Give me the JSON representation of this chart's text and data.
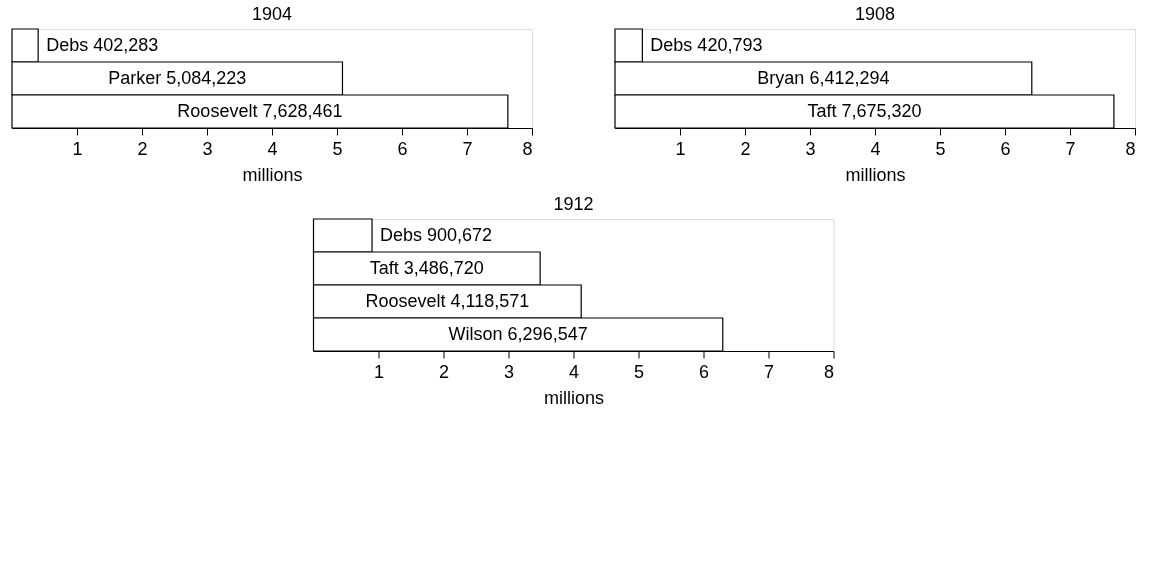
{
  "chart_data": [
    {
      "type": "bar",
      "orientation": "horizontal",
      "title": "1904",
      "xlabel": "millions",
      "categories": [
        "Debs 402,283",
        "Parker 5,084,223",
        "Roosevelt 7,628,461"
      ],
      "values": [
        0.402283,
        5.084223,
        7.628461
      ],
      "color": "#ffffff",
      "xlim": [
        0,
        8
      ],
      "xticks": [
        1,
        2,
        3,
        4,
        5,
        6,
        7,
        8
      ],
      "grid": false
    },
    {
      "type": "bar",
      "orientation": "horizontal",
      "title": "1908",
      "xlabel": "millions",
      "categories": [
        "Debs 420,793",
        "Bryan 6,412,294",
        "Taft 7,675,320"
      ],
      "values": [
        0.420793,
        6.412294,
        7.67532
      ],
      "color": "#ffffff",
      "xlim": [
        0,
        8
      ],
      "xticks": [
        1,
        2,
        3,
        4,
        5,
        6,
        7,
        8
      ],
      "grid": false
    },
    {
      "type": "bar",
      "orientation": "horizontal",
      "title": "1912",
      "xlabel": "millions",
      "categories": [
        "Debs 900,672",
        "Taft 3,486,720",
        "Roosevelt 4,118,571",
        "Wilson 6,296,547"
      ],
      "values": [
        0.900672,
        3.48672,
        4.118571,
        6.296547
      ],
      "color": "#ffffff",
      "xlim": [
        0,
        8
      ],
      "xticks": [
        1,
        2,
        3,
        4,
        5,
        6,
        7,
        8
      ],
      "grid": false
    }
  ]
}
